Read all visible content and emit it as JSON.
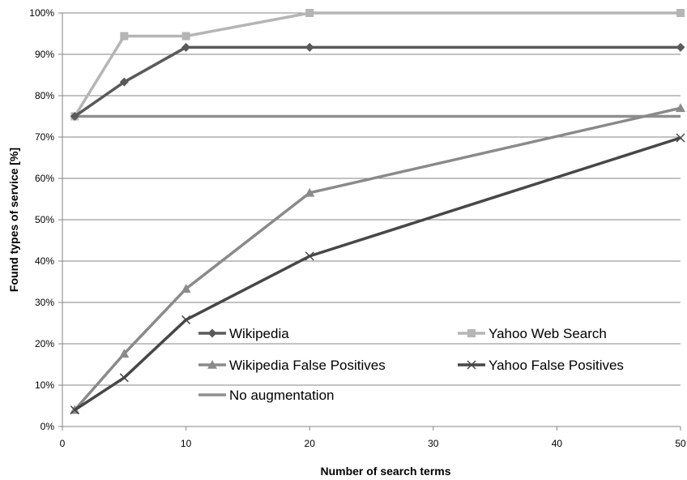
{
  "chart_data": {
    "type": "line",
    "title": "",
    "xlabel": "Number of search terms",
    "ylabel": "Found types of service [%]",
    "xlim": [
      0,
      50
    ],
    "ylim": [
      0,
      100
    ],
    "x_ticks": [
      0,
      10,
      20,
      30,
      40,
      50
    ],
    "x_tick_labels": [
      "0",
      "10",
      "20",
      "30",
      "40",
      "50"
    ],
    "y_ticks": [
      0,
      10,
      20,
      30,
      40,
      50,
      60,
      70,
      80,
      90,
      100
    ],
    "y_tick_labels": [
      "0%",
      "10%",
      "20%",
      "30%",
      "40%",
      "50%",
      "60%",
      "70%",
      "80%",
      "90%",
      "100%"
    ],
    "grid": "horizontal",
    "legend_position": "inside-bottom",
    "series": [
      {
        "name": "Wikipedia",
        "color": "#5a5a5a",
        "marker": "diamond",
        "x": [
          1,
          5,
          10,
          20,
          50
        ],
        "y": [
          75,
          83.3,
          91.7,
          91.7,
          91.7
        ]
      },
      {
        "name": "Yahoo Web Search",
        "color": "#b5b5b5",
        "marker": "square",
        "x": [
          1,
          5,
          10,
          20,
          50
        ],
        "y": [
          75,
          94.4,
          94.4,
          100,
          100
        ]
      },
      {
        "name": "Wikipedia False Positives",
        "color": "#8a8a8a",
        "marker": "triangle",
        "x": [
          1,
          5,
          10,
          20,
          50
        ],
        "y": [
          4,
          17.6,
          33.3,
          56.5,
          77
        ]
      },
      {
        "name": "Yahoo False Positives",
        "color": "#474747",
        "marker": "x",
        "x": [
          1,
          5,
          10,
          20,
          50
        ],
        "y": [
          4,
          11.8,
          25.8,
          41.2,
          69.8
        ]
      },
      {
        "name": "No augmentation",
        "color": "#8f8f8f",
        "marker": "none",
        "x": [
          1,
          50
        ],
        "y": [
          75,
          75
        ]
      }
    ]
  }
}
